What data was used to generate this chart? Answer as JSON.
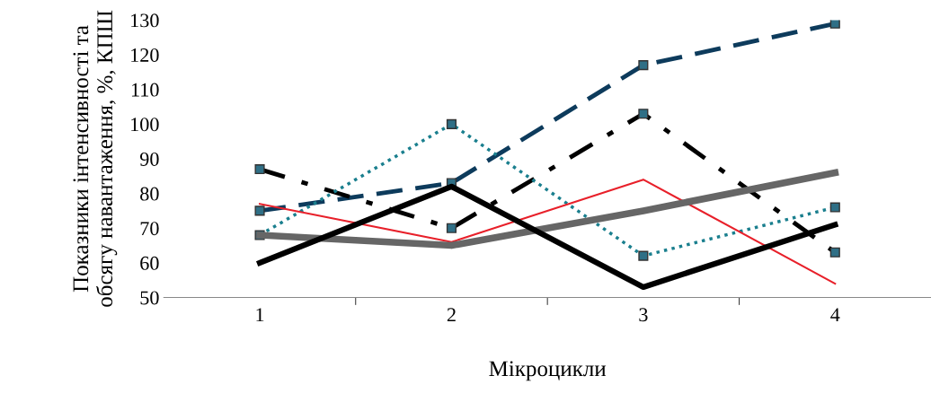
{
  "chart_data": {
    "type": "line",
    "xlabel": "Мікроцикли",
    "ylabel": "Показники інтенсивності та обсягу навантаження, %, КПШ",
    "categories": [
      "1",
      "2",
      "3",
      "4"
    ],
    "ylim": [
      50,
      130
    ],
    "yticks": [
      50,
      60,
      70,
      80,
      90,
      100,
      110,
      120,
      130
    ],
    "grid": false,
    "series": [
      {
        "color": "#0d3b5c",
        "values": [
          75,
          83,
          117,
          129
        ],
        "marker": "square",
        "line_style": "dashed"
      },
      {
        "color": "#000000",
        "values": [
          87,
          70,
          103,
          63
        ],
        "marker": "square",
        "line_style": "dashdot"
      },
      {
        "color": "#1a7f8e",
        "values": [
          68,
          100,
          62,
          76
        ],
        "marker": "square",
        "line_style": "dotted"
      },
      {
        "color": "#e8202a",
        "values": [
          77,
          66,
          84,
          54
        ],
        "marker": "none",
        "line_style": "solid"
      },
      {
        "color": "#666666",
        "values": [
          68,
          65,
          75,
          86
        ],
        "marker": "none",
        "line_style": "solid"
      },
      {
        "color": "#000000",
        "values": [
          60,
          82,
          53,
          71
        ],
        "marker": "none",
        "line_style": "solid"
      }
    ]
  }
}
